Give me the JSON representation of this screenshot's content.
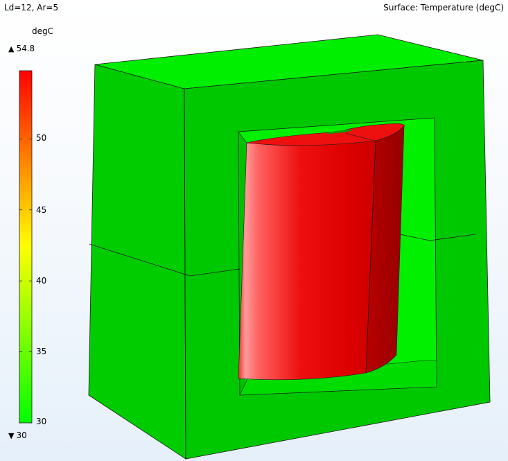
{
  "plot": {
    "title_left": "Ld=12, Ar=5",
    "title_right": "Surface: Temperature (degC)"
  },
  "legend": {
    "unit": "degC",
    "max_symbol": "▲",
    "max_value": "54.8",
    "min_symbol": "▼",
    "min_value": "30",
    "ticks": [
      "50",
      "45",
      "40",
      "35",
      "30"
    ],
    "tick_values": [
      50,
      45,
      40,
      35,
      30
    ],
    "range": [
      30,
      54.8
    ],
    "colormap": [
      "#00ff00",
      "#80ff00",
      "#ffff00",
      "#ff8000",
      "#ff0000"
    ]
  },
  "scene": {
    "core_color": "#00ff00",
    "core_shadow": "#00cc00",
    "coil_color": "#ff0000",
    "coil_shadow": "#b30000"
  }
}
